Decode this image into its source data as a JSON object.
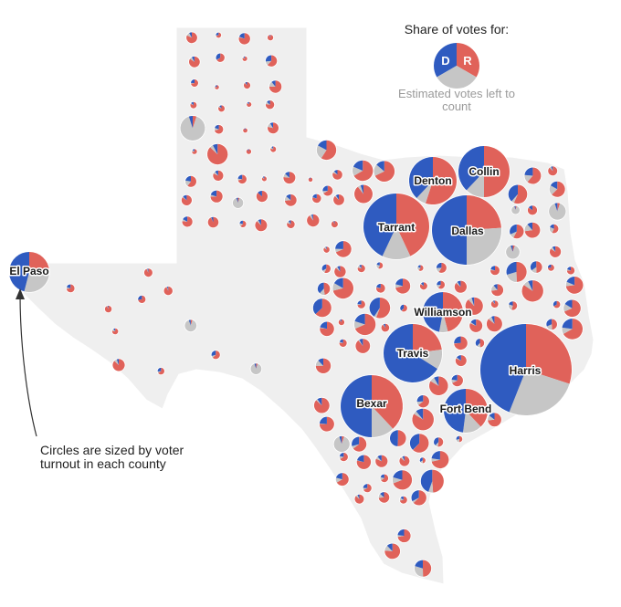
{
  "colors": {
    "democrat": "#2f5bc0",
    "republican": "#e0625a",
    "remaining": "#c6c6c6",
    "state_fill": "#efefef"
  },
  "legend": {
    "title": "Share of votes for:",
    "dem_letter": "D",
    "rep_letter": "R",
    "remaining_label": "Estimated votes left to count"
  },
  "note": "Circles are sized by voter turnout in each county",
  "counties": {
    "harris": "Harris",
    "dallas": "Dallas",
    "tarrant": "Tarrant",
    "bexar": "Bexar",
    "travis": "Travis",
    "collin": "Collin",
    "denton": "Denton",
    "fort_bend": "Fort Bend",
    "williamson": "Williamson",
    "el_paso": "El Paso"
  },
  "labeled_county_shares": {
    "harris": {
      "d": 0.44,
      "r": 0.3,
      "left": 0.26
    },
    "dallas": {
      "d": 0.5,
      "r": 0.24,
      "left": 0.26
    },
    "tarrant": {
      "d": 0.43,
      "r": 0.43,
      "left": 0.14
    },
    "bexar": {
      "d": 0.5,
      "r": 0.38,
      "left": 0.12
    },
    "travis": {
      "d": 0.66,
      "r": 0.23,
      "left": 0.11
    },
    "collin": {
      "d": 0.38,
      "r": 0.5,
      "left": 0.12
    },
    "denton": {
      "d": 0.38,
      "r": 0.55,
      "left": 0.07
    },
    "fort_bend": {
      "d": 0.48,
      "r": 0.38,
      "left": 0.14
    },
    "williamson": {
      "d": 0.47,
      "r": 0.46,
      "left": 0.07
    },
    "el_paso": {
      "d": 0.46,
      "r": 0.24,
      "left": 0.3
    }
  }
}
